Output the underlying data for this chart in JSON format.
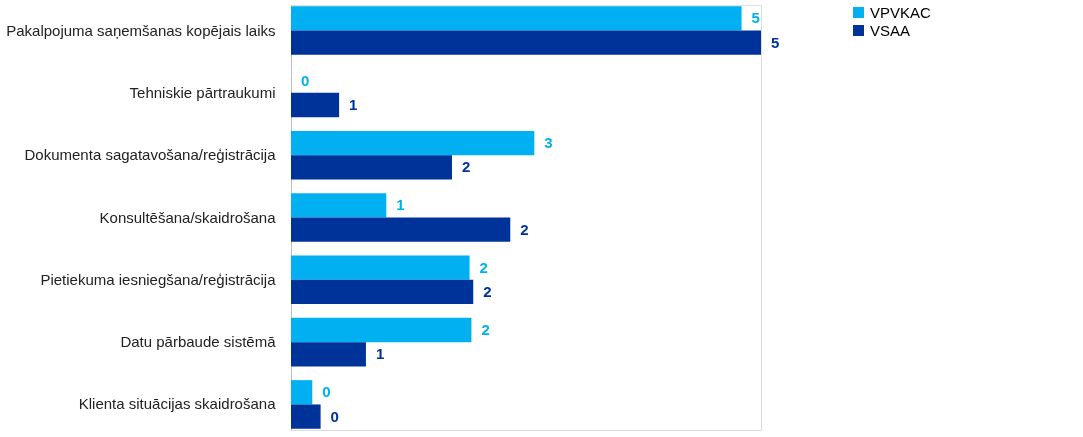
{
  "chart_data": {
    "type": "bar",
    "orientation": "horizontal",
    "legend": "right",
    "categories": [
      "Pakalpojuma saņemšanas kopējais laiks",
      "Tehniskie pārtraukumi",
      "Dokumenta sagatavošana/reģistrācija",
      "Konsultēšana/skaidrošana",
      "Pietiekuma iesniegšana/reģistrācija",
      "Datu pārbaude sistēmā",
      "Klienta situācijas skaidrošana"
    ],
    "series": [
      {
        "name": "VPVKAC",
        "color": "#00b0f0",
        "values": [
          4.87,
          0,
          2.63,
          1.03,
          1.93,
          1.95,
          0.23
        ],
        "value_labels": [
          "5",
          "0",
          "3",
          "1",
          "2",
          "2",
          "0"
        ]
      },
      {
        "name": "VSAA",
        "color": "#003399",
        "values": [
          5.08,
          0.52,
          1.74,
          2.37,
          1.97,
          0.81,
          0.32
        ],
        "value_labels": [
          "5",
          "1",
          "2",
          "2",
          "2",
          "1",
          "0"
        ]
      }
    ]
  }
}
